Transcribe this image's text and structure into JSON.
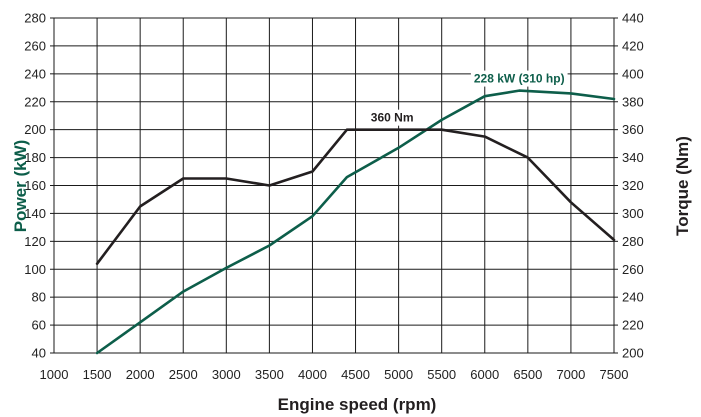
{
  "chart_data": {
    "type": "line",
    "title": "",
    "xlabel": "Engine speed (rpm)",
    "ylabel_left": "Power (kW)",
    "ylabel_right": "Torque (Nm)",
    "xlim": [
      1000,
      7500
    ],
    "ylim_left": [
      40,
      280
    ],
    "ylim_right": [
      200,
      440
    ],
    "x_ticks": [
      1000,
      1500,
      2000,
      2500,
      3000,
      3500,
      4000,
      4500,
      5000,
      5500,
      6000,
      6500,
      7000,
      7500
    ],
    "y_left_ticks": [
      40,
      60,
      80,
      100,
      120,
      140,
      160,
      180,
      200,
      220,
      240,
      260,
      280
    ],
    "y_right_ticks": [
      200,
      220,
      240,
      260,
      280,
      300,
      320,
      340,
      360,
      380,
      400,
      420,
      440
    ],
    "grid": true,
    "colors": {
      "power": "#0d5e4a",
      "torque": "#231f20",
      "grid": "#1a1a1a"
    },
    "series": [
      {
        "axis": "left",
        "color": "#0d5e4a",
        "x": [
          1500,
          2000,
          2500,
          3000,
          3500,
          4000,
          4400,
          5000,
          5500,
          6000,
          6400,
          7000,
          7500
        ],
        "values": [
          40,
          62,
          84,
          101,
          117,
          138,
          166,
          187,
          207,
          224,
          228,
          226,
          222
        ]
      },
      {
        "axis": "right",
        "color": "#231f20",
        "x": [
          1500,
          2000,
          2500,
          3000,
          3500,
          4000,
          4400,
          5500,
          6000,
          6500,
          7000,
          7500
        ],
        "values": [
          264,
          305,
          325,
          325,
          320,
          330,
          360,
          360,
          355,
          340,
          308,
          281
        ]
      }
    ],
    "annotations": [
      {
        "text": "228 kW (310 hp)",
        "x": 6400,
        "y": 228,
        "axis": "left",
        "color": "#0d5e4a"
      },
      {
        "text": "360 Nm",
        "x": 4925,
        "y": 360,
        "axis": "right",
        "color": "#231f20"
      }
    ]
  }
}
